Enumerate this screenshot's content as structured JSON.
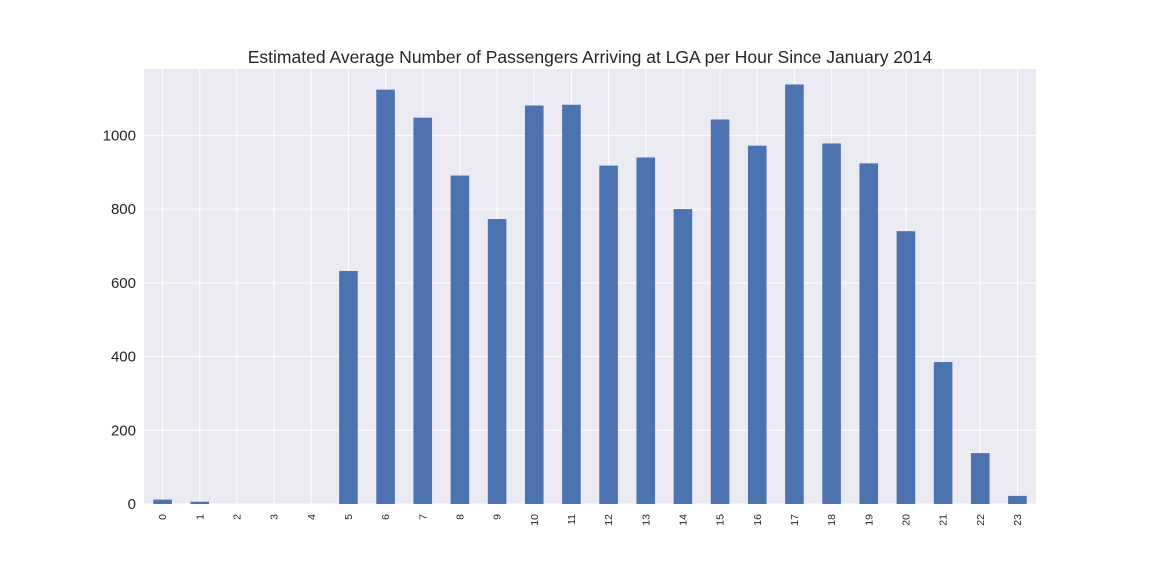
{
  "chart_data": {
    "type": "bar",
    "title": "Estimated Average Number of Passengers Arriving at LGA per Hour Since January 2014",
    "xlabel": "",
    "ylabel": "",
    "categories": [
      "0",
      "1",
      "2",
      "3",
      "4",
      "5",
      "6",
      "7",
      "8",
      "9",
      "10",
      "11",
      "12",
      "13",
      "14",
      "15",
      "16",
      "17",
      "18",
      "19",
      "20",
      "21",
      "22",
      "23"
    ],
    "values": [
      12,
      6,
      0,
      0,
      0,
      632,
      1124,
      1048,
      891,
      773,
      1081,
      1083,
      918,
      940,
      800,
      1043,
      972,
      1138,
      978,
      924,
      740,
      385,
      138,
      22
    ],
    "ylim": [
      0,
      1180
    ],
    "yticks": [
      0,
      200,
      400,
      600,
      800,
      1000
    ],
    "grid": true,
    "colors": {
      "bar": "#4c72b0",
      "plot_background": "#eaeaf2",
      "grid": "#ffffff",
      "text": "#262626"
    }
  }
}
